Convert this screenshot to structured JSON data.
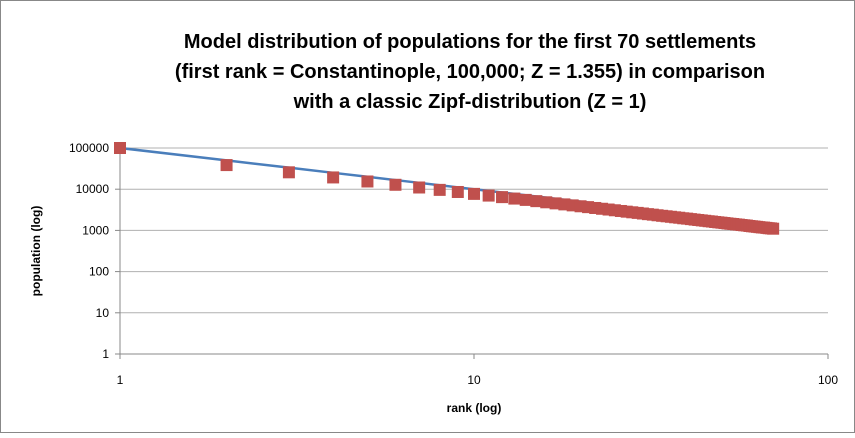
{
  "chart_data": {
    "type": "scatter",
    "title": [
      "Model distribution of populations for the first 70 settlements",
      "(first rank = Constantinople, 100,000; Z = 1.355) in comparison",
      "with a classic Zipf-distribution (Z = 1)"
    ],
    "xlabel": "rank (log)",
    "ylabel": "population (log)",
    "xscale": "log",
    "yscale": "log",
    "xlim": [
      1,
      100
    ],
    "ylim": [
      1,
      100000
    ],
    "xticks": [
      1,
      10,
      100
    ],
    "yticks": [
      1,
      10,
      100,
      1000,
      10000,
      100000
    ],
    "grid": true,
    "x": [
      1,
      2,
      3,
      4,
      5,
      6,
      7,
      8,
      9,
      10,
      11,
      12,
      13,
      14,
      15,
      16,
      17,
      18,
      19,
      20,
      21,
      22,
      23,
      24,
      25,
      26,
      27,
      28,
      29,
      30,
      31,
      32,
      33,
      34,
      35,
      36,
      37,
      38,
      39,
      40,
      41,
      42,
      43,
      44,
      45,
      46,
      47,
      48,
      49,
      50,
      51,
      52,
      53,
      54,
      55,
      56,
      57,
      58,
      59,
      60,
      61,
      62,
      63,
      64,
      65,
      66,
      67,
      68,
      69,
      70
    ],
    "series": [
      {
        "style": "line",
        "color": "#4a7ebb",
        "values": [
          100000,
          50000,
          33333,
          25000,
          20000,
          16667,
          14286,
          12500,
          11111,
          10000,
          9091,
          8333,
          7692,
          7143,
          6667,
          6250,
          5882,
          5556,
          5263,
          5000,
          4762,
          4545,
          4348,
          4167,
          4000,
          3846,
          3704,
          3571,
          3448,
          3333,
          3226,
          3125,
          3030,
          2941,
          2857,
          2778,
          2703,
          2632,
          2564,
          2500,
          2439,
          2381,
          2326,
          2273,
          2222,
          2174,
          2128,
          2083,
          2041,
          2000,
          1961,
          1923,
          1887,
          1852,
          1818,
          1786,
          1754,
          1724,
          1695,
          1667,
          1639,
          1613,
          1587,
          1563,
          1538,
          1515,
          1493,
          1471,
          1449,
          1429
        ]
      },
      {
        "style": "marker",
        "color": "#c0504d",
        "values": [
          100000,
          38500,
          25700,
          19300,
          15400,
          12800,
          11000,
          9630,
          8560,
          7700,
          7000,
          6420,
          5920,
          5500,
          5130,
          4810,
          4530,
          4280,
          4050,
          3850,
          3670,
          3500,
          3350,
          3210,
          3080,
          2960,
          2850,
          2750,
          2660,
          2570,
          2480,
          2410,
          2330,
          2260,
          2200,
          2140,
          2080,
          2030,
          1970,
          1930,
          1880,
          1830,
          1790,
          1750,
          1710,
          1670,
          1640,
          1600,
          1570,
          1540,
          1510,
          1480,
          1450,
          1430,
          1400,
          1380,
          1350,
          1330,
          1310,
          1280,
          1260,
          1240,
          1220,
          1200,
          1180,
          1170,
          1150,
          1130,
          1120,
          1100
        ]
      }
    ]
  }
}
